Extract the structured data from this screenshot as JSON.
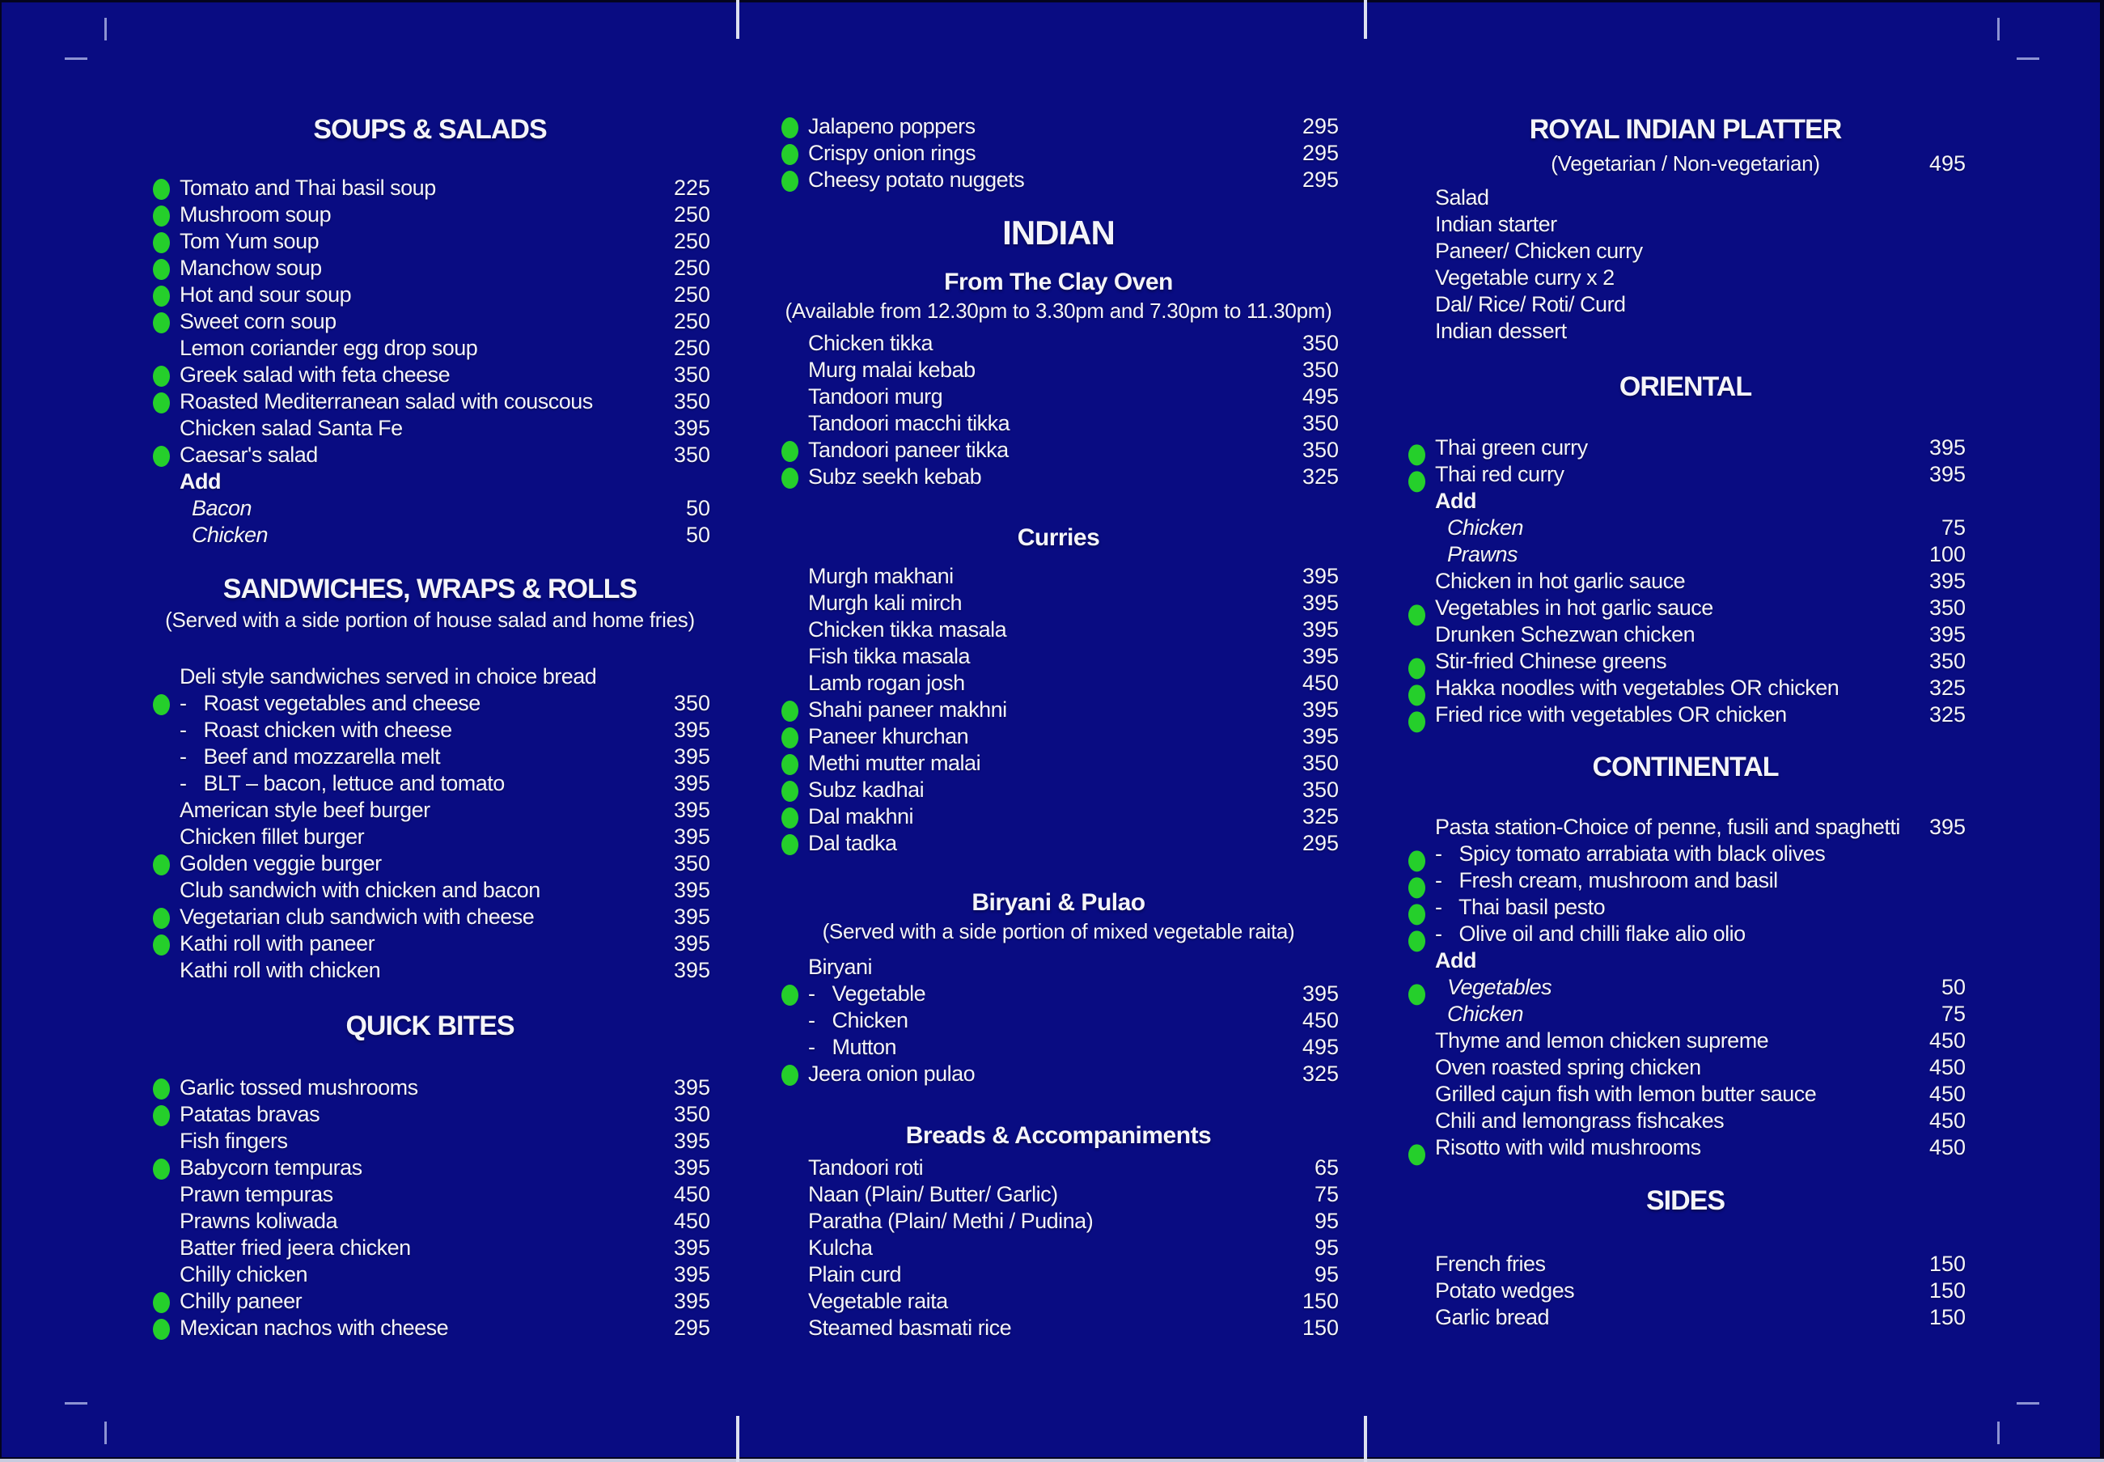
{
  "menu": {
    "background_color": "#090c82",
    "text_color": "#f4f4f8",
    "veg_dot_color": "#25cf2b",
    "columns": [
      {
        "blocks": [
          {
            "type": "spacer",
            "h": 138
          },
          {
            "type": "header",
            "text": "SOUPS & SALADS"
          },
          {
            "type": "spacer",
            "h": 34
          },
          {
            "type": "items",
            "list": [
              {
                "name": "Tomato and Thai basil soup",
                "price": "225",
                "veg": true
              },
              {
                "name": "Mushroom soup",
                "price": "250",
                "veg": true
              },
              {
                "name": "Tom Yum soup",
                "price": "250",
                "veg": true
              },
              {
                "name": "Manchow soup",
                "price": "250",
                "veg": true
              },
              {
                "name": "Hot and sour soup",
                "price": "250",
                "veg": true
              },
              {
                "name": "Sweet corn soup",
                "price": "250",
                "veg": true
              },
              {
                "name": "Lemon coriander egg drop soup",
                "price": "250"
              },
              {
                "name": "Greek salad with feta cheese",
                "price": "350",
                "veg": true
              },
              {
                "name": "Roasted Mediterranean salad with couscous",
                "price": "350",
                "veg": true
              },
              {
                "name": "Chicken salad Santa Fe",
                "price": "395"
              },
              {
                "name": "Caesar's salad",
                "price": "350",
                "veg": true
              },
              {
                "name": "Add",
                "bold": true
              },
              {
                "name": "Bacon",
                "price": "50",
                "italic": true,
                "indent": 1
              },
              {
                "name": "Chicken",
                "price": "50",
                "italic": true,
                "indent": 1
              }
            ]
          },
          {
            "type": "spacer",
            "h": 28
          },
          {
            "type": "header",
            "text": "SANDWICHES, WRAPS & ROLLS"
          },
          {
            "type": "note",
            "text": "(Served with a side portion of house salad and home fries)"
          },
          {
            "type": "spacer",
            "h": 38
          },
          {
            "type": "items",
            "list": [
              {
                "name": "Deli style sandwiches served in choice bread"
              },
              {
                "name": "-   Roast vegetables and cheese",
                "price": "350",
                "veg": true
              },
              {
                "name": "-   Roast chicken with cheese",
                "price": "395"
              },
              {
                "name": "-   Beef and mozzarella melt",
                "price": "395"
              },
              {
                "name": "-   BLT – bacon, lettuce and tomato",
                "price": "395"
              },
              {
                "name": "American style beef burger",
                "price": "395"
              },
              {
                "name": "Chicken fillet burger",
                "price": "395"
              },
              {
                "name": "Golden veggie burger",
                "price": "350",
                "veg": true
              },
              {
                "name": "Club sandwich with chicken and bacon",
                "price": "395"
              },
              {
                "name": "Vegetarian club sandwich with cheese",
                "price": "395",
                "veg": true
              },
              {
                "name": "Kathi roll with paneer",
                "price": "395",
                "veg": true
              },
              {
                "name": "Kathi roll with chicken",
                "price": "395"
              }
            ]
          },
          {
            "type": "spacer",
            "h": 30
          },
          {
            "type": "header",
            "text": "QUICK BITES"
          },
          {
            "type": "spacer",
            "h": 38
          },
          {
            "type": "items",
            "list": [
              {
                "name": "Garlic tossed mushrooms",
                "price": "395",
                "veg": true
              },
              {
                "name": "Patatas bravas",
                "price": "350",
                "veg": true
              },
              {
                "name": "Fish fingers",
                "price": "395"
              },
              {
                "name": "Babycorn tempuras",
                "price": "395",
                "veg": true
              },
              {
                "name": "Prawn tempuras",
                "price": "450"
              },
              {
                "name": "Prawns koliwada",
                "price": "450"
              },
              {
                "name": "Batter fried jeera chicken",
                "price": "395"
              },
              {
                "name": "Chilly chicken",
                "price": "395"
              },
              {
                "name": "Chilly paneer",
                "price": "395",
                "veg": true
              },
              {
                "name": "Mexican nachos with cheese",
                "price": "295",
                "veg": true
              }
            ]
          }
        ]
      },
      {
        "blocks": [
          {
            "type": "spacer",
            "h": 140
          },
          {
            "type": "items",
            "list": [
              {
                "name": "Jalapeno poppers",
                "price": "295",
                "veg": true
              },
              {
                "name": "Crispy onion rings",
                "price": "295",
                "veg": true
              },
              {
                "name": "Cheesy potato nuggets",
                "price": "295",
                "veg": true
              }
            ]
          },
          {
            "type": "spacer",
            "h": 24
          },
          {
            "type": "header",
            "size": "lg",
            "text": "INDIAN"
          },
          {
            "type": "spacer",
            "h": 17
          },
          {
            "type": "subheader",
            "text": "From The Clay Oven"
          },
          {
            "type": "note",
            "text": "(Available from 12.30pm to 3.30pm and 7.30pm to 11.30pm)"
          },
          {
            "type": "spacer",
            "h": 8
          },
          {
            "type": "items",
            "list": [
              {
                "name": "Chicken tikka",
                "price": "350"
              },
              {
                "name": "Murg malai kebab",
                "price": "350"
              },
              {
                "name": "Tandoori murg",
                "price": "495"
              },
              {
                "name": "Tandoori macchi tikka",
                "price": "350"
              },
              {
                "name": "Tandoori paneer tikka",
                "price": "350",
                "veg": true
              },
              {
                "name": "Subz seekh kebab",
                "price": "325",
                "veg": true
              }
            ]
          },
          {
            "type": "spacer",
            "h": 40
          },
          {
            "type": "subheader",
            "text": "Curries"
          },
          {
            "type": "spacer",
            "h": 12
          },
          {
            "type": "items",
            "list": [
              {
                "name": "Murgh makhani",
                "price": "395"
              },
              {
                "name": "Murgh kali mirch",
                "price": "395"
              },
              {
                "name": "Chicken tikka masala",
                "price": "395"
              },
              {
                "name": "Fish tikka masala",
                "price": "395"
              },
              {
                "name": "Lamb rogan josh",
                "price": "450"
              },
              {
                "name": "Shahi paneer makhni",
                "price": "395",
                "veg": true
              },
              {
                "name": "Paneer khurchan",
                "price": "395",
                "veg": true
              },
              {
                "name": "Methi mutter malai",
                "price": "350",
                "veg": true
              },
              {
                "name": "Subz kadhai",
                "price": "350",
                "veg": true
              },
              {
                "name": "Dal makhni",
                "price": "325",
                "veg": true
              },
              {
                "name": "Dal tadka",
                "price": "295",
                "veg": true
              }
            ]
          },
          {
            "type": "spacer",
            "h": 38
          },
          {
            "type": "subheader",
            "text": "Biryani & Pulao"
          },
          {
            "type": "note",
            "text": "(Served with a side portion of mixed vegetable raita)"
          },
          {
            "type": "spacer",
            "h": 12
          },
          {
            "type": "items",
            "list": [
              {
                "name": "Biryani"
              },
              {
                "name": "-   Vegetable",
                "price": "395",
                "veg": true
              },
              {
                "name": "-   Chicken",
                "price": "450"
              },
              {
                "name": "-   Mutton",
                "price": "495"
              },
              {
                "name": "Jeera onion pulao",
                "price": "325",
                "veg": true
              }
            ]
          },
          {
            "type": "spacer",
            "h": 41
          },
          {
            "type": "subheader",
            "text": "Breads & Accompaniments"
          },
          {
            "type": "spacer",
            "h": 4
          },
          {
            "type": "items",
            "list": [
              {
                "name": "Tandoori roti",
                "price": "65"
              },
              {
                "name": "Naan (Plain/ Butter/ Garlic)",
                "price": "75"
              },
              {
                "name": "Paratha (Plain/ Methi / Pudina)",
                "price": "95"
              },
              {
                "name": "Kulcha",
                "price": "95"
              },
              {
                "name": "Plain curd",
                "price": "95"
              },
              {
                "name": "Vegetable raita",
                "price": "150"
              },
              {
                "name": "Steamed basmati rice",
                "price": "150"
              }
            ]
          }
        ]
      },
      {
        "blocks": [
          {
            "type": "spacer",
            "h": 138
          },
          {
            "type": "header",
            "text": "ROYAL INDIAN PLATTER"
          },
          {
            "type": "spacer",
            "h": 4
          },
          {
            "type": "note_price",
            "text": "(Vegetarian / Non-vegetarian)",
            "price": "495"
          },
          {
            "type": "spacer",
            "h": 10
          },
          {
            "type": "items",
            "list": [
              {
                "name": "Salad"
              },
              {
                "name": "Indian starter"
              },
              {
                "name": "Paneer/ Chicken curry"
              },
              {
                "name": "Vegetable curry x 2"
              },
              {
                "name": "Dal/ Rice/ Roti/ Curd"
              },
              {
                "name": "Indian dessert"
              }
            ]
          },
          {
            "type": "spacer",
            "h": 30
          },
          {
            "type": "header",
            "text": "ORIENTAL"
          },
          {
            "type": "spacer",
            "h": 37
          },
          {
            "type": "items",
            "list": [
              {
                "name": "Thai green curry",
                "price": "395",
                "veg": true
              },
              {
                "name": "Thai red curry",
                "price": "395",
                "veg": true
              },
              {
                "name": "Add",
                "bold": true
              },
              {
                "name": "Chicken",
                "price": "75",
                "italic": true,
                "indent": 1
              },
              {
                "name": "Prawns",
                "price": "100",
                "italic": true,
                "indent": 1
              },
              {
                "name": "Chicken in hot garlic sauce",
                "price": "395"
              },
              {
                "name": "Vegetables in hot garlic sauce",
                "price": "350",
                "veg": true
              },
              {
                "name": "Drunken Schezwan chicken",
                "price": "395"
              },
              {
                "name": "Stir-fried Chinese greens",
                "price": "350",
                "veg": true
              },
              {
                "name": "Hakka noodles with vegetables OR chicken",
                "price": "325",
                "veg": true
              },
              {
                "name": "Fried rice with vegetables OR chicken",
                "price": "325",
                "veg": true
              }
            ]
          },
          {
            "type": "spacer",
            "h": 26
          },
          {
            "type": "header",
            "text": "CONTINENTAL"
          },
          {
            "type": "spacer",
            "h": 36
          },
          {
            "type": "items",
            "list": [
              {
                "name": "Pasta station-Choice of penne, fusili and spaghetti",
                "price": "395"
              },
              {
                "name": "-   Spicy tomato arrabiata with black olives",
                "veg": true
              },
              {
                "name": "-   Fresh cream, mushroom and basil",
                "veg": true
              },
              {
                "name": "-   Thai basil pesto",
                "veg": true
              },
              {
                "name": "-   Olive oil and chilli flake alio olio",
                "veg": true
              },
              {
                "name": "Add",
                "bold": true
              },
              {
                "name": "Vegetables",
                "price": "50",
                "italic": true,
                "indent": 1,
                "veg": true
              },
              {
                "name": "Chicken",
                "price": "75",
                "italic": true,
                "indent": 1
              },
              {
                "name": "Thyme and lemon chicken supreme",
                "price": "450"
              },
              {
                "name": "Oven roasted spring chicken",
                "price": "450"
              },
              {
                "name": "Grilled cajun fish with lemon butter sauce",
                "price": "450"
              },
              {
                "name": "Chili and lemongrass fishcakes",
                "price": "450"
              },
              {
                "name": "Risotto with wild mushrooms",
                "price": "450",
                "veg": true
              }
            ]
          },
          {
            "type": "spacer",
            "h": 27
          },
          {
            "type": "header",
            "text": "SIDES"
          },
          {
            "type": "spacer",
            "h": 40
          },
          {
            "type": "items",
            "list": [
              {
                "name": "French fries",
                "price": "150"
              },
              {
                "name": "Potato wedges",
                "price": "150"
              },
              {
                "name": "Garlic bread",
                "price": "150"
              }
            ]
          }
        ]
      }
    ]
  }
}
